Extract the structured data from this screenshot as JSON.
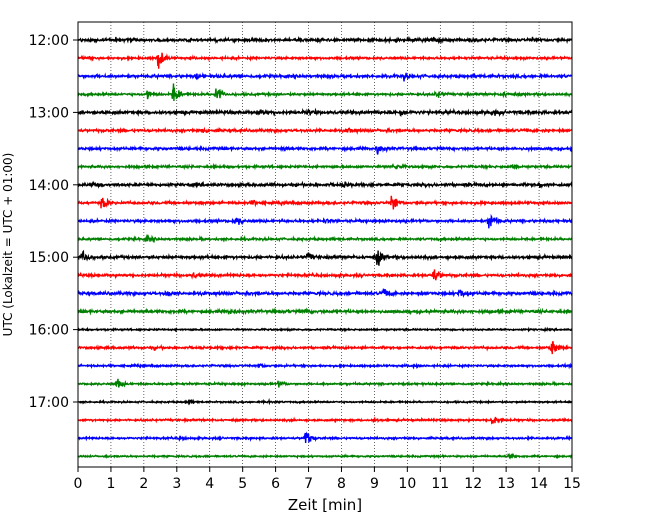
{
  "chart_data": {
    "type": "line",
    "title": "",
    "xlabel": "Zeit  [min]",
    "ylabel": "UTC (Lokalzeit = UTC + 01:00)",
    "xlim": [
      0,
      15
    ],
    "x_ticks": [
      "0",
      "1",
      "2",
      "3",
      "4",
      "5",
      "6",
      "7",
      "8",
      "9",
      "10",
      "11",
      "12",
      "13",
      "14",
      "15"
    ],
    "y_tick_labels": [
      "12:00",
      "13:00",
      "14:00",
      "15:00",
      "16:00",
      "17:00"
    ],
    "vertical_gridlines": "dotted at each minute",
    "trace_interval_min": 15,
    "colors_cycle": [
      "#000000",
      "#ff0000",
      "#0000ff",
      "#008000"
    ],
    "series": [
      {
        "start": "12:00",
        "color": "#000000",
        "noise": 0.9,
        "events": [
          [
            1.1,
            0.5
          ],
          [
            10.8,
            0.4
          ],
          [
            12.0,
            0.4
          ],
          [
            13.8,
            0.4
          ]
        ]
      },
      {
        "start": "12:15",
        "color": "#ff0000",
        "noise": 0.7,
        "events": [
          [
            2.45,
            2.6
          ],
          [
            0.2,
            0.3
          ]
        ]
      },
      {
        "start": "12:30",
        "color": "#0000ff",
        "noise": 0.9,
        "events": [
          [
            9.9,
            0.7
          ],
          [
            3.6,
            0.4
          ]
        ]
      },
      {
        "start": "12:45",
        "color": "#008000",
        "noise": 0.7,
        "events": [
          [
            2.1,
            1.3
          ],
          [
            2.9,
            2.8
          ],
          [
            4.2,
            2.0
          ],
          [
            10.9,
            0.8
          ],
          [
            12.9,
            0.6
          ]
        ]
      },
      {
        "start": "13:00",
        "color": "#000000",
        "noise": 1.0,
        "events": [
          [
            5.5,
            0.9
          ],
          [
            7.0,
            0.6
          ],
          [
            9.8,
            0.9
          ],
          [
            12.6,
            0.6
          ]
        ]
      },
      {
        "start": "13:15",
        "color": "#ff0000",
        "noise": 0.8,
        "events": [
          [
            3.8,
            0.5
          ],
          [
            8.2,
            0.5
          ]
        ]
      },
      {
        "start": "13:30",
        "color": "#0000ff",
        "noise": 0.8,
        "events": [
          [
            9.1,
            1.3
          ],
          [
            6.2,
            0.4
          ]
        ]
      },
      {
        "start": "13:45",
        "color": "#008000",
        "noise": 0.7,
        "events": [
          [
            9.6,
            0.9
          ],
          [
            13.2,
            0.5
          ]
        ]
      },
      {
        "start": "14:00",
        "color": "#000000",
        "noise": 0.9,
        "events": [
          [
            8.1,
            0.5
          ],
          [
            14.0,
            0.6
          ],
          [
            0.5,
            0.4
          ]
        ]
      },
      {
        "start": "14:15",
        "color": "#ff0000",
        "noise": 0.8,
        "events": [
          [
            0.75,
            1.7
          ],
          [
            9.55,
            2.5
          ],
          [
            5.3,
            0.5
          ]
        ]
      },
      {
        "start": "14:30",
        "color": "#0000ff",
        "noise": 0.8,
        "events": [
          [
            4.8,
            1.2
          ],
          [
            12.5,
            2.3
          ],
          [
            7.5,
            0.4
          ]
        ]
      },
      {
        "start": "14:45",
        "color": "#008000",
        "noise": 0.7,
        "events": [
          [
            2.1,
            0.6
          ]
        ]
      },
      {
        "start": "15:00",
        "color": "#000000",
        "noise": 0.9,
        "events": [
          [
            0.15,
            1.6
          ],
          [
            7.0,
            0.9
          ],
          [
            9.1,
            2.0
          ]
        ]
      },
      {
        "start": "15:15",
        "color": "#ff0000",
        "noise": 0.8,
        "events": [
          [
            10.8,
            2.0
          ],
          [
            3.5,
            0.6
          ]
        ]
      },
      {
        "start": "15:30",
        "color": "#0000ff",
        "noise": 0.9,
        "events": [
          [
            2.7,
            0.7
          ],
          [
            9.3,
            1.2
          ],
          [
            11.6,
            1.0
          ]
        ]
      },
      {
        "start": "15:45",
        "color": "#008000",
        "noise": 0.9,
        "events": [
          [
            4.6,
            0.6
          ],
          [
            6.9,
            0.5
          ]
        ]
      },
      {
        "start": "16:00",
        "color": "#000000",
        "noise": 0.5,
        "events": []
      },
      {
        "start": "16:15",
        "color": "#ff0000",
        "noise": 0.7,
        "events": [
          [
            14.4,
            2.0
          ],
          [
            2.3,
            0.3
          ]
        ]
      },
      {
        "start": "16:30",
        "color": "#0000ff",
        "noise": 0.6,
        "events": [
          [
            5.5,
            0.6
          ],
          [
            10.2,
            0.3
          ]
        ]
      },
      {
        "start": "16:45",
        "color": "#008000",
        "noise": 0.6,
        "events": [
          [
            1.2,
            1.1
          ],
          [
            6.1,
            0.7
          ]
        ]
      },
      {
        "start": "17:00",
        "color": "#000000",
        "noise": 0.5,
        "events": [
          [
            3.3,
            0.4
          ],
          [
            5.8,
            0.3
          ]
        ]
      },
      {
        "start": "17:15",
        "color": "#ff0000",
        "noise": 0.6,
        "events": [
          [
            12.6,
            1.8
          ],
          [
            9.0,
            0.3
          ]
        ]
      },
      {
        "start": "17:30",
        "color": "#0000ff",
        "noise": 0.6,
        "events": [
          [
            6.9,
            2.2
          ],
          [
            3.1,
            0.3
          ]
        ]
      },
      {
        "start": "17:45",
        "color": "#008000",
        "noise": 0.5,
        "events": [
          [
            13.1,
            0.6
          ]
        ]
      }
    ]
  }
}
